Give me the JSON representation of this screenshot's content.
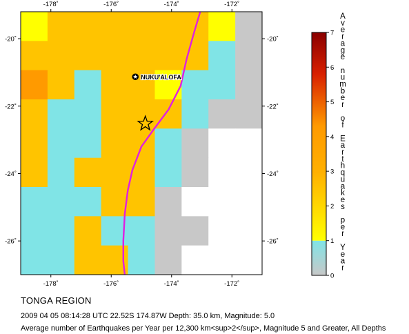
{
  "map": {
    "lon_min": -179,
    "lon_max": -171,
    "lat_min": -27,
    "lat_max": -19.2,
    "lon_ticks": [
      "-178˚",
      "-176˚",
      "-174˚",
      "-172˚"
    ],
    "lon_tick_values": [
      -178,
      -176,
      -174,
      -172
    ],
    "lat_ticks": [
      "-20˚",
      "-22˚",
      "-24˚",
      "-26˚"
    ],
    "lat_tick_values": [
      -20,
      -22,
      -24,
      -26
    ],
    "city": {
      "name": "NUKU'ALOFA",
      "lon": -175.2,
      "lat": -21.13
    },
    "epicenter": {
      "lon": -174.87,
      "lat": -22.52
    },
    "grid": {
      "rows_top_to_bottom": [
        [
          1.0,
          2.2,
          2.0,
          2.1,
          2.2,
          2.0,
          2.2,
          1.0,
          0.3
        ],
        [
          2.2,
          2.6,
          2.0,
          2.1,
          2.3,
          2.1,
          2.0,
          0.8,
          0.3
        ],
        [
          3.4,
          2.9,
          0.9,
          2.0,
          2.2,
          1.9,
          0.9,
          0.7,
          0.3
        ],
        [
          2.2,
          0.9,
          0.9,
          2.0,
          2.6,
          2.3,
          0.8,
          0.3,
          0.3
        ],
        [
          2.0,
          0.9,
          0.9,
          2.2,
          2.1,
          0.9,
          0.3,
          null,
          null
        ],
        [
          2.0,
          0.9,
          2.0,
          2.6,
          2.0,
          0.8,
          0.3,
          null,
          null
        ],
        [
          0.9,
          0.9,
          0.9,
          2.0,
          2.0,
          0.3,
          null,
          null,
          null
        ],
        [
          0.9,
          0.9,
          2.2,
          0.9,
          0.9,
          0.3,
          0.3,
          null,
          null
        ],
        [
          0.8,
          0.9,
          2.1,
          2.2,
          0.9,
          0.3,
          null,
          null,
          null
        ]
      ]
    },
    "plate_boundary": [
      [
        -173.05,
        -19.2
      ],
      [
        -173.25,
        -19.8
      ],
      [
        -173.5,
        -20.6
      ],
      [
        -173.7,
        -21.4
      ],
      [
        -174.1,
        -22.1
      ],
      [
        -174.6,
        -22.7
      ],
      [
        -175.0,
        -23.2
      ],
      [
        -175.3,
        -23.9
      ],
      [
        -175.45,
        -24.5
      ],
      [
        -175.55,
        -25.2
      ],
      [
        -175.6,
        -26.0
      ],
      [
        -175.6,
        -26.6
      ],
      [
        -175.55,
        -27.0
      ]
    ]
  },
  "colorbar": {
    "labels": [
      "0",
      "1",
      "2",
      "3",
      "4",
      "5",
      "6",
      "7"
    ],
    "title_lines": [
      "A",
      "v",
      "e",
      "r",
      "a",
      "g",
      "e",
      "",
      "n",
      "u",
      "m",
      "b",
      "e",
      "r",
      "",
      "o",
      "f",
      "",
      "E",
      "a",
      "r",
      "t",
      "h",
      "q",
      "u",
      "a",
      "k",
      "e",
      "s",
      "",
      "p",
      "e",
      "r",
      "",
      "Y",
      "e",
      "a",
      "r"
    ],
    "colors": {
      "gray": "#c8c8c8",
      "cyan": "#80e4e6",
      "yellow": "#ffff00",
      "orange": "#ff9a00",
      "dark_red": "#8a0000"
    }
  },
  "caption": {
    "region": "TONGA REGION",
    "event": "2009 04 05 08:14:28 UTC 22.52S 174.87W Depth: 35.0 km, Magnitude: 5.0",
    "description": "Average number of Earthquakes per Year per 12,300 km<sup>2</sup>, Magnitude 5 and Greater, All Depths"
  },
  "colors": {
    "plate_boundary": "#e020e0",
    "frame": "#000000"
  }
}
